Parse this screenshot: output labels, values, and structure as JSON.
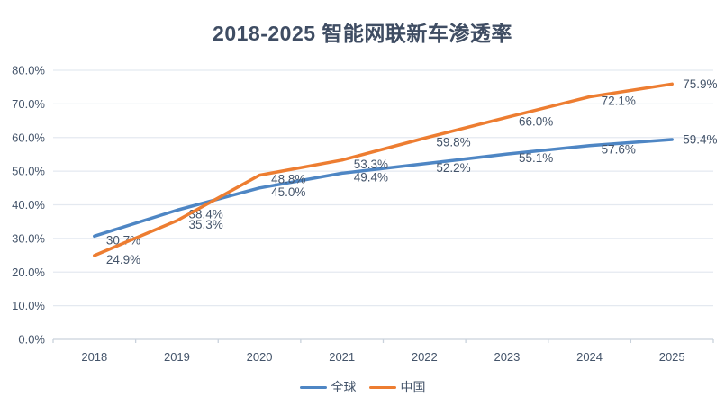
{
  "chart_data": {
    "type": "line",
    "title": "2018-2025 智能网联新车渗透率",
    "categories": [
      "2018",
      "2019",
      "2020",
      "2021",
      "2022",
      "2023",
      "2024",
      "2025"
    ],
    "series": [
      {
        "name": "全球",
        "color": "#4E86C4",
        "values": [
          30.7,
          38.4,
          45.0,
          49.4,
          52.2,
          55.1,
          57.6,
          59.4
        ]
      },
      {
        "name": "中国",
        "color": "#ED7D31",
        "values": [
          24.9,
          35.3,
          48.8,
          53.3,
          59.8,
          66.0,
          72.1,
          75.9
        ]
      }
    ],
    "xlabel": "",
    "ylabel": "",
    "ylim": [
      0,
      80
    ],
    "ytick_step": 10,
    "ytick_labels": [
      "0.0%",
      "10.0%",
      "20.0%",
      "30.0%",
      "40.0%",
      "50.0%",
      "60.0%",
      "70.0%",
      "80.0%"
    ],
    "data_labels": true,
    "grid": true,
    "legend_position": "bottom"
  },
  "colors": {
    "title": "#3F4D63",
    "axis_text": "#44546A",
    "data_label": "#44546A",
    "gridline": "#E4E9F0",
    "axis_line": "#C9D2DC",
    "background": "#FFFFFF"
  }
}
